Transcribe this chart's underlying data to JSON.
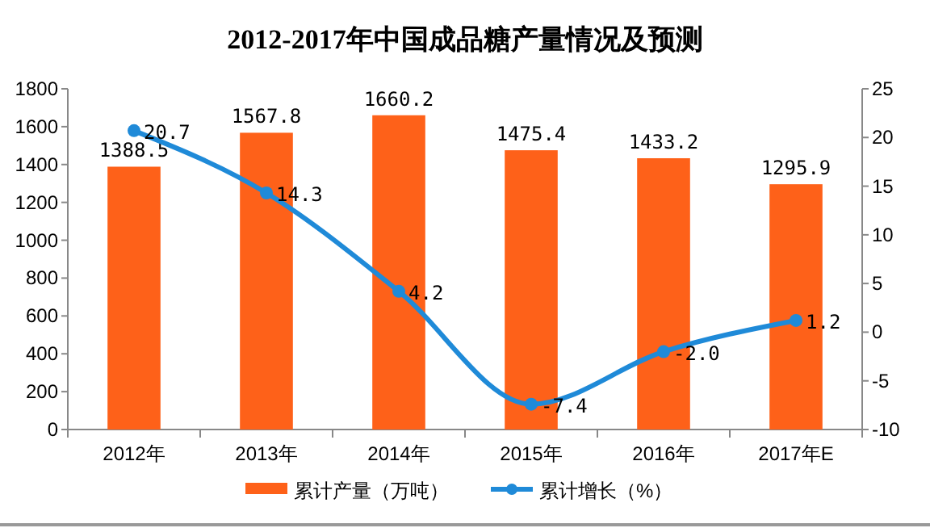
{
  "chart_data": {
    "type": "bar",
    "title": "2012-2017年中国成品糖产量情况及预测",
    "categories": [
      "2012年",
      "2013年",
      "2014年",
      "2015年",
      "2016年",
      "2017年E"
    ],
    "series": [
      {
        "name": "累计产量（万吨）",
        "color": "#fe6119",
        "values": [
          1388.5,
          1567.8,
          1660.2,
          1475.4,
          1433.2,
          1295.9
        ]
      },
      {
        "name": "累计增长（%）",
        "type": "line",
        "axis": "y2",
        "color": "#1f8ad8",
        "values": [
          20.7,
          14.3,
          4.2,
          -7.4,
          -2.0,
          1.2
        ],
        "value_labels": [
          "20.7",
          "14.3",
          "4.2",
          "-7.4",
          "-2.0",
          "1.2"
        ]
      }
    ],
    "ylim": [
      0,
      1800
    ],
    "yticks": [
      0,
      200,
      400,
      600,
      800,
      1000,
      1200,
      1400,
      1600,
      1800
    ],
    "y2lim": [
      -10,
      25
    ],
    "y2ticks": [
      -10,
      -5,
      0,
      5,
      10,
      15,
      20,
      25
    ],
    "data_labels": true,
    "marker": "circle",
    "legend": "bottom",
    "grid": false
  }
}
